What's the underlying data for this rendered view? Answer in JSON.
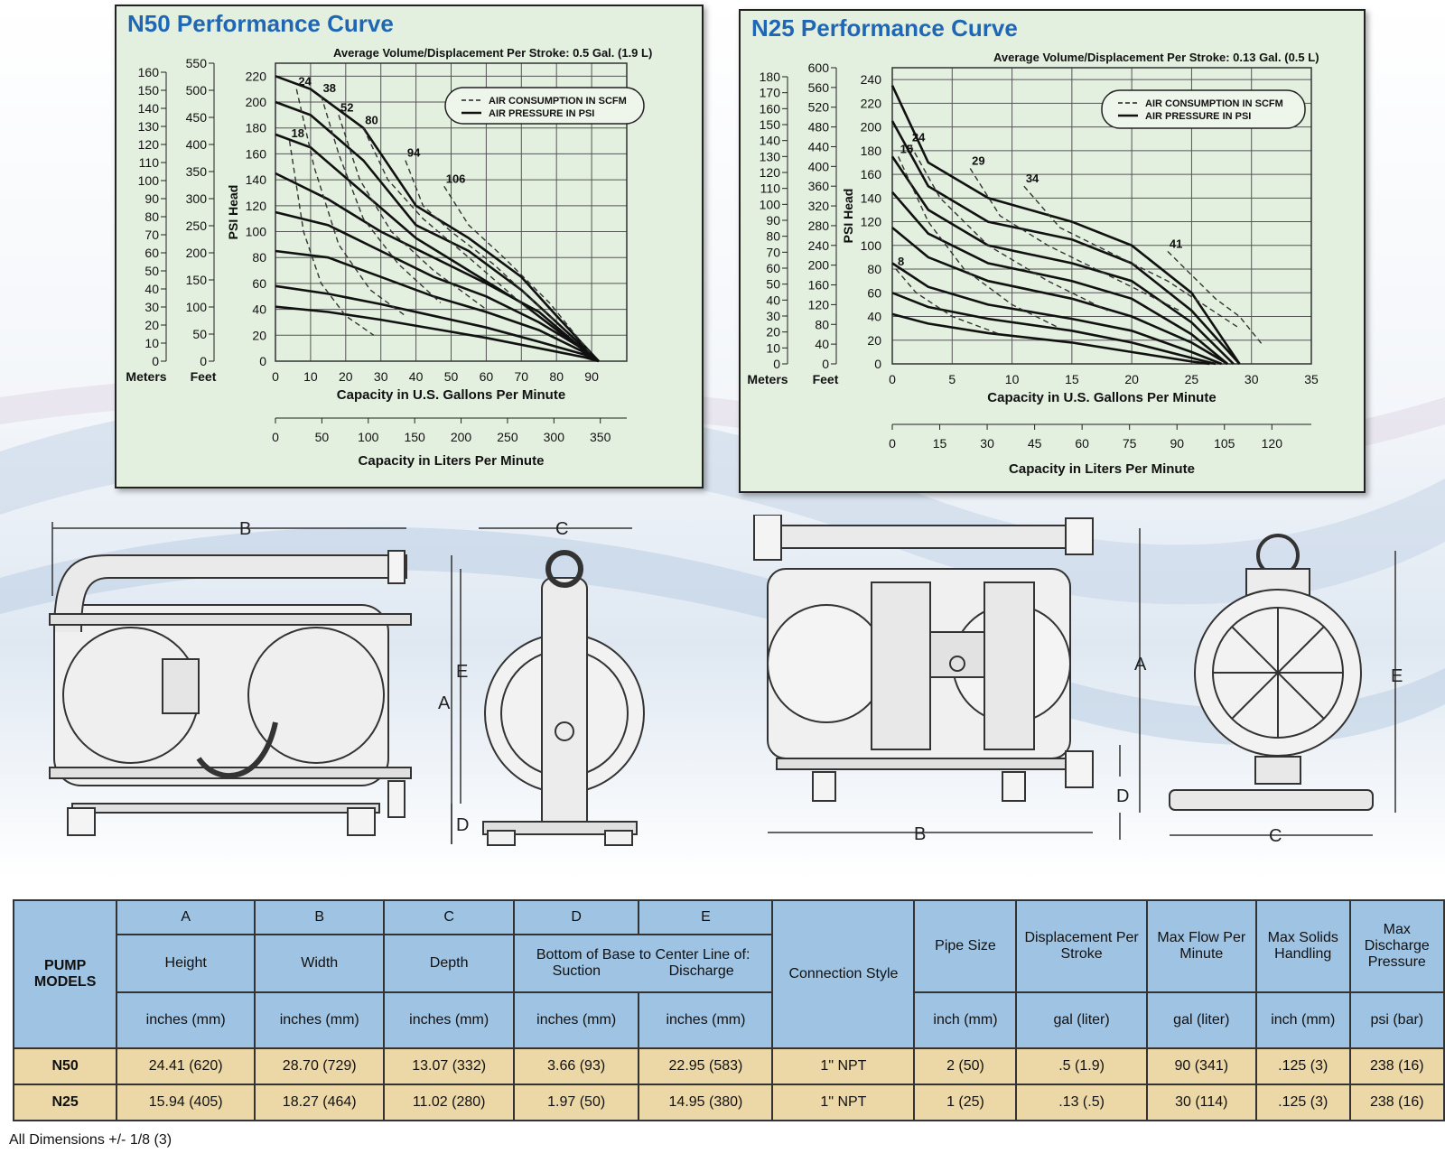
{
  "charts": [
    {
      "title": "N50 Performance Curve",
      "subtitle": "Average Volume/Displacement Per Stroke: 0.5 Gal. (1.9 L)",
      "legend": {
        "dashed": "AIR CONSUMPTION IN SCFM",
        "solid": "AIR PRESSURE IN PSI"
      },
      "meters_label": "Meters",
      "feet_label": "Feet",
      "meters_ticks": [
        "0",
        "10",
        "20",
        "30",
        "40",
        "50",
        "60",
        "70",
        "80",
        "90",
        "100",
        "110",
        "120",
        "130",
        "140",
        "150",
        "160"
      ],
      "feet_ticks": [
        "0",
        "50",
        "100",
        "150",
        "200",
        "250",
        "300",
        "350",
        "400",
        "450",
        "500",
        "550"
      ],
      "psi_label": "PSI Head",
      "psi_ticks": [
        "0",
        "20",
        "40",
        "60",
        "80",
        "100",
        "120",
        "140",
        "160",
        "180",
        "200",
        "220"
      ],
      "x_label": "Capacity in U.S. Gallons Per Minute",
      "x_ticks": [
        "0",
        "10",
        "20",
        "30",
        "40",
        "50",
        "60",
        "70",
        "80",
        "90"
      ],
      "lpm_label": "Capacity in Liters Per Minute",
      "lpm_ticks": [
        "0",
        "50",
        "100",
        "150",
        "200",
        "250",
        "300",
        "350"
      ],
      "scfm_labels": [
        "18",
        "24",
        "38",
        "52",
        "80",
        "94",
        "106"
      ]
    },
    {
      "title": "N25 Performance Curve",
      "subtitle": "Average Volume/Displacement Per Stroke: 0.13 Gal. (0.5 L)",
      "legend": {
        "dashed": "AIR CONSUMPTION IN SCFM",
        "solid": "AIR PRESSURE IN PSI"
      },
      "meters_label": "Meters",
      "feet_label": "Feet",
      "meters_ticks": [
        "0",
        "10",
        "20",
        "30",
        "40",
        "50",
        "60",
        "70",
        "80",
        "90",
        "100",
        "110",
        "120",
        "130",
        "140",
        "150",
        "160",
        "170",
        "180"
      ],
      "feet_ticks": [
        "0",
        "40",
        "80",
        "120",
        "160",
        "200",
        "240",
        "280",
        "320",
        "360",
        "400",
        "440",
        "480",
        "520",
        "560",
        "600"
      ],
      "psi_label": "PSI Head",
      "psi_ticks": [
        "0",
        "20",
        "40",
        "60",
        "80",
        "100",
        "120",
        "140",
        "160",
        "180",
        "200",
        "220",
        "240"
      ],
      "x_label": "Capacity in U.S. Gallons Per Minute",
      "x_ticks": [
        "0",
        "5",
        "10",
        "15",
        "20",
        "25",
        "30",
        "35"
      ],
      "lpm_label": "Capacity in Liters Per Minute",
      "lpm_ticks": [
        "0",
        "15",
        "30",
        "45",
        "60",
        "75",
        "90",
        "105",
        "120"
      ],
      "scfm_labels": [
        "8",
        "15",
        "24",
        "29",
        "34",
        "41"
      ]
    }
  ],
  "chart_data": [
    {
      "type": "line",
      "title": "N50 Performance Curve",
      "xlabel": "Capacity in U.S. Gallons Per Minute",
      "ylabel": "PSI Head",
      "xlim": [
        0,
        100
      ],
      "ylim": [
        0,
        230
      ],
      "grid": true,
      "legend_position": "top-right",
      "series": [
        {
          "name": "AIR PRESSURE IN PSI",
          "x": [
            0,
            10,
            25,
            40,
            55,
            70,
            80,
            92
          ],
          "y": [
            220,
            210,
            180,
            120,
            95,
            65,
            35,
            0
          ]
        },
        {
          "name": "AIR PRESSURE IN PSI",
          "x": [
            0,
            10,
            25,
            40,
            55,
            70,
            82,
            92
          ],
          "y": [
            200,
            190,
            155,
            105,
            85,
            55,
            25,
            0
          ]
        },
        {
          "name": "AIR PRESSURE IN PSI",
          "x": [
            0,
            10,
            25,
            40,
            55,
            70,
            83,
            92
          ],
          "y": [
            175,
            165,
            130,
            95,
            70,
            45,
            18,
            0
          ]
        },
        {
          "name": "AIR PRESSURE IN PSI",
          "x": [
            0,
            15,
            30,
            45,
            60,
            75,
            85,
            92
          ],
          "y": [
            145,
            125,
            100,
            80,
            60,
            38,
            15,
            0
          ]
        },
        {
          "name": "AIR PRESSURE IN PSI",
          "x": [
            0,
            15,
            30,
            45,
            60,
            75,
            86,
            92
          ],
          "y": [
            115,
            105,
            85,
            65,
            50,
            30,
            12,
            0
          ]
        },
        {
          "name": "AIR PRESSURE IN PSI",
          "x": [
            0,
            15,
            30,
            45,
            60,
            75,
            87,
            92
          ],
          "y": [
            85,
            80,
            65,
            50,
            38,
            24,
            8,
            0
          ]
        },
        {
          "name": "AIR PRESSURE IN PSI",
          "x": [
            0,
            15,
            30,
            45,
            60,
            75,
            88,
            92
          ],
          "y": [
            58,
            52,
            44,
            35,
            26,
            15,
            5,
            0
          ]
        },
        {
          "name": "AIR PRESSURE IN PSI",
          "x": [
            0,
            15,
            30,
            45,
            60,
            75,
            88,
            92
          ],
          "y": [
            42,
            38,
            32,
            25,
            18,
            10,
            3,
            0
          ]
        },
        {
          "name": "AIR CONSUMPTION IN SCFM",
          "label": "18",
          "x": [
            4,
            8,
            13,
            20,
            28
          ],
          "y": [
            170,
            100,
            60,
            35,
            20
          ]
        },
        {
          "name": "AIR CONSUMPTION IN SCFM",
          "label": "24",
          "x": [
            6,
            11,
            18,
            27,
            37
          ],
          "y": [
            210,
            150,
            90,
            55,
            35
          ]
        },
        {
          "name": "AIR CONSUMPTION IN SCFM",
          "label": "38",
          "x": [
            13,
            18,
            25,
            35,
            47
          ],
          "y": [
            205,
            160,
            110,
            75,
            45
          ]
        },
        {
          "name": "AIR CONSUMPTION IN SCFM",
          "label": "52",
          "x": [
            18,
            24,
            33,
            45,
            60
          ],
          "y": [
            190,
            140,
            100,
            70,
            40
          ]
        },
        {
          "name": "AIR CONSUMPTION IN SCFM",
          "label": "80",
          "x": [
            25,
            32,
            42,
            55,
            72
          ],
          "y": [
            180,
            140,
            110,
            80,
            40
          ]
        },
        {
          "name": "AIR CONSUMPTION IN SCFM",
          "label": "94",
          "x": [
            37,
            42,
            50,
            62,
            80
          ],
          "y": [
            155,
            120,
            100,
            75,
            30
          ]
        },
        {
          "name": "AIR CONSUMPTION IN SCFM",
          "label": "106",
          "x": [
            48,
            55,
            65,
            78,
            90
          ],
          "y": [
            135,
            105,
            80,
            45,
            5
          ]
        }
      ]
    },
    {
      "type": "line",
      "title": "N25 Performance Curve",
      "xlabel": "Capacity in U.S. Gallons Per Minute",
      "ylabel": "PSI Head",
      "xlim": [
        0,
        35
      ],
      "ylim": [
        0,
        250
      ],
      "grid": true,
      "legend_position": "top-right",
      "series": [
        {
          "name": "AIR PRESSURE IN PSI",
          "x": [
            0,
            3,
            8,
            15,
            20,
            25,
            29
          ],
          "y": [
            235,
            170,
            140,
            120,
            100,
            60,
            0
          ]
        },
        {
          "name": "AIR PRESSURE IN PSI",
          "x": [
            0,
            3,
            8,
            15,
            20,
            25,
            29
          ],
          "y": [
            205,
            150,
            120,
            105,
            85,
            45,
            0
          ]
        },
        {
          "name": "AIR PRESSURE IN PSI",
          "x": [
            0,
            3,
            8,
            15,
            20,
            25,
            28.5
          ],
          "y": [
            175,
            130,
            100,
            85,
            70,
            35,
            0
          ]
        },
        {
          "name": "AIR PRESSURE IN PSI",
          "x": [
            0,
            3,
            8,
            15,
            20,
            25,
            28
          ],
          "y": [
            145,
            110,
            85,
            70,
            55,
            25,
            0
          ]
        },
        {
          "name": "AIR PRESSURE IN PSI",
          "x": [
            0,
            3,
            8,
            15,
            20,
            25,
            28
          ],
          "y": [
            115,
            90,
            70,
            55,
            40,
            18,
            0
          ]
        },
        {
          "name": "AIR PRESSURE IN PSI",
          "x": [
            0,
            3,
            8,
            15,
            20,
            25,
            27.5
          ],
          "y": [
            85,
            65,
            50,
            38,
            28,
            10,
            0
          ]
        },
        {
          "name": "AIR PRESSURE IN PSI",
          "x": [
            0,
            3,
            8,
            15,
            20,
            25,
            27
          ],
          "y": [
            60,
            48,
            38,
            28,
            18,
            5,
            0
          ]
        },
        {
          "name": "AIR PRESSURE IN PSI",
          "x": [
            0,
            3,
            8,
            15,
            20,
            25,
            26.5
          ],
          "y": [
            42,
            34,
            26,
            18,
            10,
            2,
            0
          ]
        },
        {
          "name": "AIR CONSUMPTION IN SCFM",
          "label": "8",
          "x": [
            0.3,
            2,
            5,
            9
          ],
          "y": [
            80,
            60,
            40,
            25
          ]
        },
        {
          "name": "AIR CONSUMPTION IN SCFM",
          "label": "15",
          "x": [
            0.5,
            3,
            6,
            10,
            14
          ],
          "y": [
            175,
            120,
            80,
            50,
            30
          ]
        },
        {
          "name": "AIR CONSUMPTION IN SCFM",
          "label": "24",
          "x": [
            1.5,
            4,
            8,
            13,
            18
          ],
          "y": [
            185,
            140,
            100,
            70,
            45
          ]
        },
        {
          "name": "AIR CONSUMPTION IN SCFM",
          "label": "29",
          "x": [
            6.5,
            9,
            13,
            18,
            24
          ],
          "y": [
            165,
            125,
            100,
            75,
            45
          ]
        },
        {
          "name": "AIR CONSUMPTION IN SCFM",
          "label": "34",
          "x": [
            11,
            14,
            18,
            23,
            29
          ],
          "y": [
            150,
            115,
            95,
            70,
            30
          ]
        },
        {
          "name": "AIR CONSUMPTION IN SCFM",
          "label": "41",
          "x": [
            23,
            25,
            27,
            29,
            31
          ],
          "y": [
            95,
            75,
            55,
            40,
            15
          ]
        }
      ]
    }
  ],
  "drawings": {
    "n50_front_dims": [
      "B",
      "E",
      "A",
      "D"
    ],
    "n50_side_dims": [
      "C"
    ],
    "n25_front_dims": [
      "A",
      "D",
      "B"
    ],
    "n25_side_dims": [
      "E",
      "C"
    ]
  },
  "table": {
    "header_letters": [
      "A",
      "B",
      "C",
      "D",
      "E"
    ],
    "pump_models": "PUMP\nMODELS",
    "height": "Height",
    "width": "Width",
    "depth": "Depth",
    "bottom_base": "Bottom of Base to Center Line of:",
    "suction": "Suction",
    "discharge": "Discharge",
    "connection": "Connection Style",
    "pipe": "Pipe Size",
    "displacement": "Displacement Per Stroke",
    "max_flow": "Max Flow Per Minute",
    "max_solids": "Max Solids Handling",
    "max_pressure": "Max Discharge Pressure",
    "units": [
      "inches (mm)",
      "inches (mm)",
      "inches (mm)",
      "inches (mm)",
      "inches (mm)",
      "inch (mm)",
      "gal (liter)",
      "gal (liter)",
      "inch (mm)",
      "psi (bar)"
    ],
    "rows": [
      [
        "N50",
        "24.41 (620)",
        "28.70 (729)",
        "13.07 (332)",
        "3.66 (93)",
        "22.95 (583)",
        "1\" NPT",
        "2 (50)",
        ".5 (1.9)",
        "90 (341)",
        ".125 (3)",
        "238 (16)"
      ],
      [
        "N25",
        "15.94 (405)",
        "18.27 (464)",
        "11.02 (280)",
        "1.97 (50)",
        "14.95 (380)",
        "1\" NPT",
        "1 (25)",
        ".13 (.5)",
        "30 (114)",
        ".125 (3)",
        "238 (16)"
      ]
    ]
  },
  "footnote": "All Dimensions +/- 1/8 (3)",
  "colors": {
    "chart_bg": "#e3efdf",
    "title_blue": "#1f67b5",
    "header_blue": "#9fc3e2",
    "row_tan": "#ecd7a6"
  }
}
